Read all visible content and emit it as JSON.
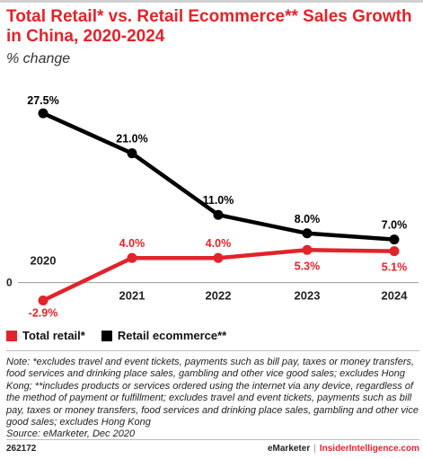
{
  "header": {
    "title": "Total Retail* vs. Retail Ecommerce** Sales Growth in China, 2020-2024",
    "subtitle": "% change"
  },
  "chart_data": {
    "type": "line",
    "title": "Total Retail* vs. Retail Ecommerce** Sales Growth in China, 2020-2024",
    "subtitle": "% change",
    "categories": [
      "2020",
      "2021",
      "2022",
      "2023",
      "2024"
    ],
    "zero_label": "0",
    "ylim": [
      -4,
      30
    ],
    "grid": false,
    "legend_placement": "bottom-left",
    "series": [
      {
        "name": "Total retail*",
        "color": "#e2232a",
        "values": [
          -2.9,
          4.0,
          4.0,
          5.3,
          5.1
        ],
        "labels": [
          "-2.9%",
          "4.0%",
          "4.0%",
          "5.3%",
          "5.1%"
        ]
      },
      {
        "name": "Retail ecommerce**",
        "color": "#000000",
        "values": [
          27.5,
          21.0,
          11.0,
          8.0,
          7.0
        ],
        "labels": [
          "27.5%",
          "21.0%",
          "11.0%",
          "8.0%",
          "7.0%"
        ]
      }
    ]
  },
  "legend": {
    "items": [
      {
        "label": "Total retail*",
        "color": "#e2232a"
      },
      {
        "label": "Retail ecommerce**",
        "color": "#000000"
      }
    ]
  },
  "notes": {
    "note_text": "Note: *excludes travel and event tickets, payments such as bill pay, taxes or money transfers, food services and drinking place sales, gambling and other vice good sales; excludes Hong Kong; **includes products or services ordered using the internet via any device, regardless of the method of payment or fulfillment; excludes travel and event tickets, payments such as bill pay, taxes or money transfers, food services and drinking place sales, gambling and other vice good sales; excludes Hong Kong",
    "source": "Source: eMarketer, Dec 2020"
  },
  "footer": {
    "chart_id": "262172",
    "brand": "eMarketer",
    "separator": "|",
    "site": "InsiderIntelligence.com"
  }
}
